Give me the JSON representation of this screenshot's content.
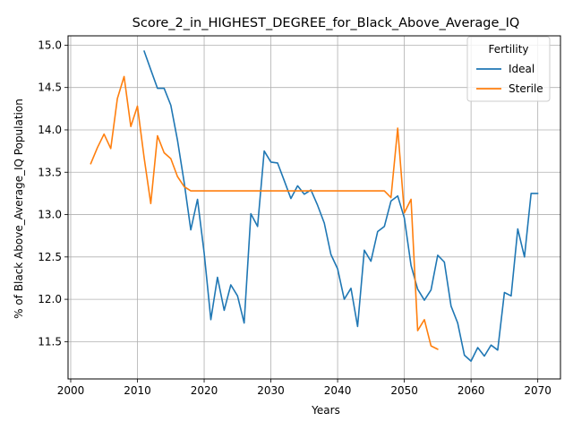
{
  "chart_data": {
    "type": "line",
    "title": "Score_2_in_HIGHEST_DEGREE_for_Black_Above_Average_IQ",
    "xlabel": "Years",
    "ylabel": "% of Black Above_Average_IQ Population",
    "xlim": [
      1999.6,
      2073.4
    ],
    "ylim": [
      11.06,
      15.11
    ],
    "x_ticks": [
      2000,
      2010,
      2020,
      2030,
      2040,
      2050,
      2060,
      2070
    ],
    "y_ticks": [
      11.5,
      12.0,
      12.5,
      13.0,
      13.5,
      14.0,
      14.5,
      15.0
    ],
    "x_tick_labels": [
      "2000",
      "2010",
      "2020",
      "2030",
      "2040",
      "2050",
      "2060",
      "2070"
    ],
    "y_tick_labels": [
      "11.5",
      "12.0",
      "12.5",
      "13.0",
      "13.5",
      "14.0",
      "14.5",
      "15.0"
    ],
    "grid": true,
    "legend": {
      "title": "Fertility",
      "placement": "top-right"
    },
    "series": [
      {
        "name": "Ideal",
        "color": "#1f77b4",
        "x": [
          2011,
          2012,
          2013,
          2014,
          2015,
          2016,
          2017,
          2018,
          2019,
          2020,
          2021,
          2022,
          2023,
          2024,
          2025,
          2026,
          2027,
          2028,
          2029,
          2030,
          2031,
          2032,
          2033,
          2034,
          2035,
          2036,
          2037,
          2038,
          2039,
          2040,
          2041,
          2042,
          2043,
          2044,
          2045,
          2046,
          2047,
          2048,
          2049,
          2050,
          2051,
          2052,
          2053,
          2054,
          2055,
          2056,
          2057,
          2058,
          2059,
          2060,
          2061,
          2062,
          2063,
          2064,
          2065,
          2066,
          2067,
          2068,
          2069,
          2070
        ],
        "y": [
          14.93,
          14.71,
          14.49,
          14.49,
          14.29,
          13.88,
          13.38,
          12.82,
          13.18,
          12.55,
          11.76,
          12.26,
          11.87,
          12.17,
          12.04,
          11.72,
          13.01,
          12.86,
          13.75,
          13.62,
          13.61,
          13.4,
          13.19,
          13.34,
          13.24,
          13.29,
          13.11,
          12.9,
          12.53,
          12.36,
          12.0,
          12.13,
          11.68,
          12.58,
          12.45,
          12.8,
          12.86,
          13.16,
          13.22,
          12.96,
          12.4,
          12.12,
          11.99,
          12.11,
          12.52,
          12.44,
          11.92,
          11.72,
          11.34,
          11.27,
          11.43,
          11.33,
          11.46,
          11.4,
          12.08,
          12.04,
          12.83,
          12.5,
          13.25,
          13.25
        ]
      },
      {
        "name": "Sterile",
        "color": "#ff7f0e",
        "x": [
          2003,
          2004,
          2005,
          2006,
          2007,
          2008,
          2009,
          2010,
          2011,
          2012,
          2013,
          2014,
          2015,
          2016,
          2017,
          2018,
          2019,
          2020,
          2021,
          2022,
          2023,
          2024,
          2025,
          2026,
          2027,
          2028,
          2029,
          2030,
          2031,
          2032,
          2033,
          2034,
          2035,
          2036,
          2037,
          2038,
          2039,
          2040,
          2041,
          2042,
          2043,
          2044,
          2045,
          2046,
          2047,
          2048,
          2049,
          2050,
          2051,
          2052,
          2053,
          2054,
          2055
        ],
        "y": [
          13.6,
          13.79,
          13.95,
          13.78,
          14.37,
          14.63,
          14.04,
          14.28,
          13.67,
          13.13,
          13.93,
          13.73,
          13.66,
          13.45,
          13.33,
          13.28,
          13.28,
          13.28,
          13.28,
          13.28,
          13.28,
          13.28,
          13.28,
          13.28,
          13.28,
          13.28,
          13.28,
          13.28,
          13.28,
          13.28,
          13.28,
          13.28,
          13.28,
          13.28,
          13.28,
          13.28,
          13.28,
          13.28,
          13.28,
          13.28,
          13.28,
          13.28,
          13.28,
          13.28,
          13.28,
          13.2,
          14.02,
          13.02,
          13.18,
          11.63,
          11.76,
          11.45,
          11.41
        ]
      }
    ]
  }
}
